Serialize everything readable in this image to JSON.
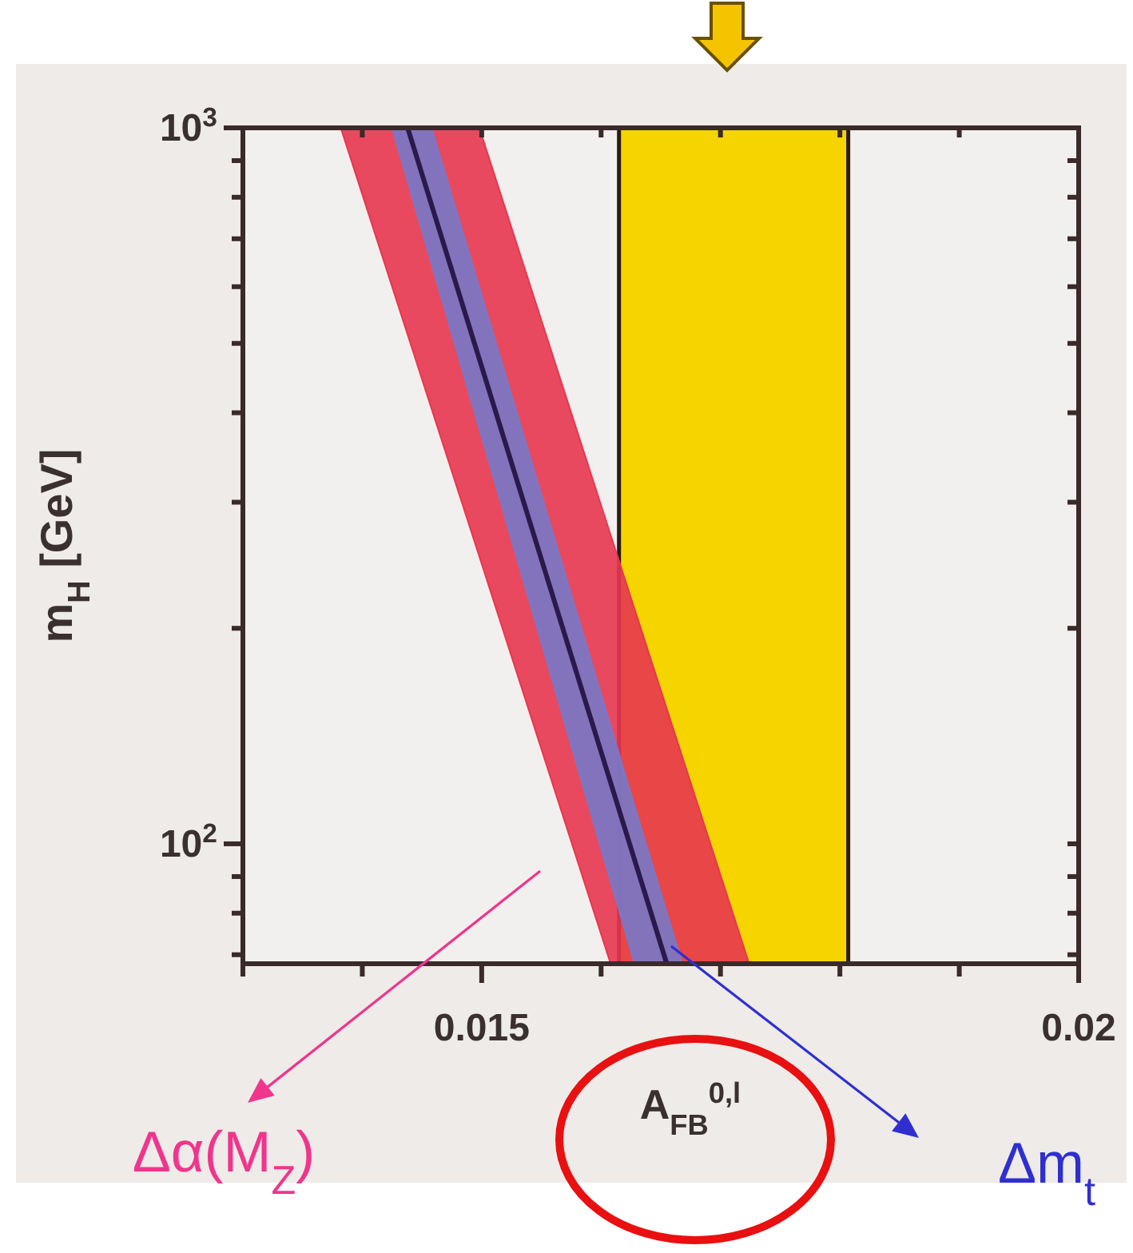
{
  "chart_data": {
    "type": "line",
    "xlabel": "A$_{FB}$$^{0,l}$",
    "ylabel": "m$_{H}$ [GeV]",
    "log": "y",
    "xlim": [
      0.013,
      0.02
    ],
    "ylim": [
      68,
      1000
    ],
    "xticks": [
      {
        "value": 0.013,
        "label": null
      },
      {
        "value": 0.014,
        "label": null
      },
      0.015,
      {
        "value": 0.016,
        "label": null
      },
      {
        "value": 0.017,
        "label": null
      },
      {
        "value": 0.018,
        "label": null
      },
      {
        "value": 0.019,
        "label": null
      },
      {
        "value": 0.02,
        "label": "0.02"
      }
    ],
    "yticks": [
      {
        "value": 70,
        "label": null
      },
      {
        "value": 80,
        "label": null
      },
      {
        "value": 90,
        "label": null
      },
      {
        "value": 100,
        "label": "10$^{2}$"
      },
      {
        "value": 200,
        "label": null
      },
      {
        "value": 300,
        "label": null
      },
      {
        "value": 400,
        "label": null
      },
      {
        "value": 500,
        "label": null
      },
      {
        "value": 600,
        "label": null
      },
      {
        "value": 700,
        "label": null
      },
      {
        "value": 800,
        "label": null
      },
      {
        "value": 900,
        "label": null
      },
      {
        "value": 1000,
        "label": "10$^{3}$"
      }
    ],
    "bands": [
      {
        "axis": "x",
        "from": 0.01615,
        "to": 0.01807,
        "color": "#f5d400"
      }
    ],
    "series": [
      {
        "color": "#e8364f",
        "x": [
          0.01382,
          0.01498,
          0.01608,
          0.01724
        ],
        "values": [
          null,
          null,
          null,
          null
        ],
        "lower": [
          1000,
          252,
          68,
          68
        ],
        "upper": [
          1000,
          1000,
          270,
          68
        ]
      },
      {
        "color": "#7878c8",
        "x": [
          0.01425,
          0.01458,
          0.01628,
          0.01668
        ],
        "values": [
          null,
          null,
          null,
          null
        ],
        "lower": [
          1000,
          646,
          68,
          68
        ],
        "upper": [
          1000,
          1000,
          113,
          68
        ]
      },
      {
        "color": "#2a1a4a",
        "x": [
          0.01438,
          0.01655
        ],
        "values": [
          1000,
          68
        ]
      }
    ],
    "annotations": [
      "Δα(M$_{Z}$)",
      "Δm$_{t}$"
    ]
  }
}
